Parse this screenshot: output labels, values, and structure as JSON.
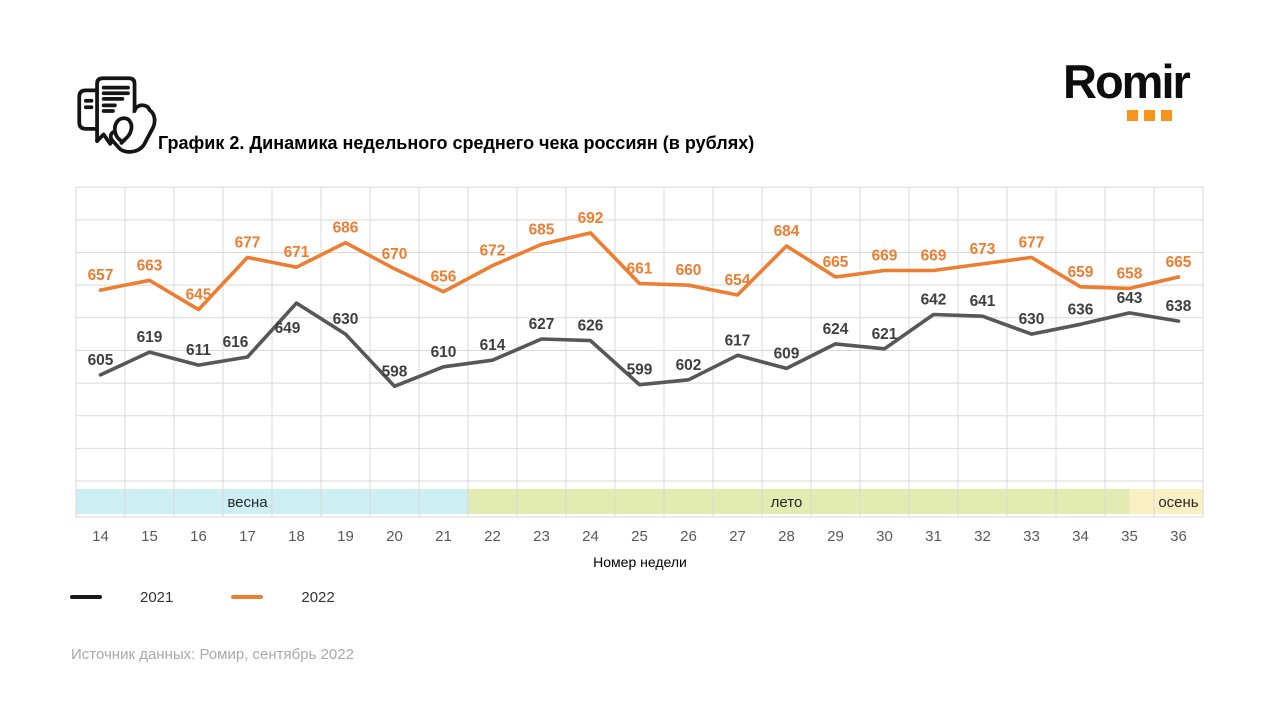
{
  "header": {
    "title": "График 2. Динамика недельного среднего чека россиян (в рублях)",
    "logo_text": "Romir",
    "logo_dot_color": "#F7941E"
  },
  "chart_data": {
    "type": "line",
    "title": "График 2. Динамика недельного среднего чека россиян (в рублях)",
    "x": [
      14,
      15,
      16,
      17,
      18,
      19,
      20,
      21,
      22,
      23,
      24,
      25,
      26,
      27,
      28,
      29,
      30,
      31,
      32,
      33,
      34,
      35,
      36
    ],
    "xlabel": "Номер недели",
    "ylabel": "",
    "ylim": [
      540,
      720
    ],
    "grid": true,
    "legend_position": "bottom-left",
    "series": [
      {
        "name": "2021",
        "color": "#575757",
        "label_color": "#3f3f3f",
        "values": [
          605,
          619,
          611,
          616,
          649,
          630,
          598,
          610,
          614,
          627,
          626,
          599,
          602,
          617,
          609,
          624,
          621,
          642,
          641,
          630,
          636,
          643,
          638
        ]
      },
      {
        "name": "2022",
        "color": "#ED7D31",
        "label_color": "#ED7D31",
        "values": [
          657,
          663,
          645,
          677,
          671,
          686,
          670,
          656,
          672,
          685,
          692,
          661,
          660,
          654,
          684,
          665,
          669,
          669,
          673,
          677,
          659,
          658,
          665
        ]
      }
    ],
    "season_bands": [
      {
        "label": "весна",
        "from_week": 14,
        "to_week": 21,
        "label_week": 17,
        "color": "#CDEEF2"
      },
      {
        "label": "лето",
        "from_week": 22,
        "to_week": 35,
        "to_mid_week": true,
        "label_week": 28,
        "color": "#E2ECB0"
      },
      {
        "label": "осень",
        "from_week": 36,
        "to_week": 36,
        "from_mid_week": true,
        "label_week": 36,
        "color": "#FAF0C4"
      }
    ],
    "grid_color": "#d9d9d9"
  },
  "legend": {
    "items": [
      {
        "label": "2021",
        "color": "#1a1a1a"
      },
      {
        "label": "2022",
        "color": "#ED7D31"
      }
    ]
  },
  "source": "Источник данных: Ромир, сентябрь 2022"
}
